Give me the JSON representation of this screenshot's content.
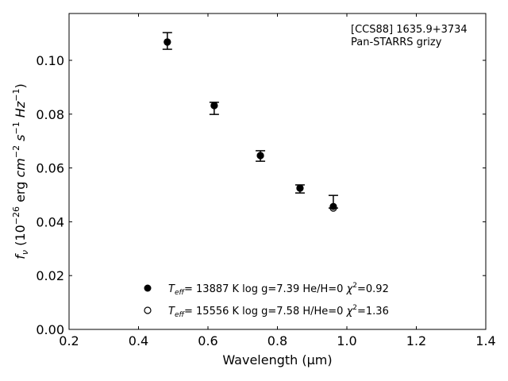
{
  "chart_data": {
    "type": "scatter",
    "title": "",
    "annotation_lines": [
      "[CCS88] 1635.9+3734",
      "Pan-STARRS grizy"
    ],
    "xlabel": "Wavelength (μm)",
    "ylabel": {
      "f": "f",
      "sub": "ν",
      "p1": " (10",
      "e1": "−26",
      "p2": " erg ",
      "cm": "cm",
      "e2": "−2",
      "s": " s",
      "e3": "−1",
      "hz": " Hz",
      "e4": "−1",
      "close": ")"
    },
    "xlim": [
      0.2,
      1.4
    ],
    "ylim": [
      0,
      0.1174
    ],
    "xticks": [
      0.2,
      0.4,
      0.6,
      0.8,
      1.0,
      1.2,
      1.4
    ],
    "xtick_labels": [
      "0.2",
      "0.4",
      "0.6",
      "0.8",
      "1.0",
      "1.2",
      "1.4"
    ],
    "yticks": [
      0,
      0.02,
      0.04,
      0.06,
      0.08,
      0.1
    ],
    "ytick_labels": [
      "0.00",
      "0.02",
      "0.04",
      "0.06",
      "0.08",
      "0.10"
    ],
    "observed": {
      "x": [
        0.483,
        0.618,
        0.751,
        0.865,
        0.961
      ],
      "y": [
        0.1068,
        0.0832,
        0.0646,
        0.0525,
        0.0457
      ],
      "err_low": [
        0.1041,
        0.0799,
        0.0625,
        0.0507,
        0.0451
      ],
      "err_high": [
        0.1103,
        0.0844,
        0.0664,
        0.0537,
        0.0498
      ]
    },
    "series": [
      {
        "name": "model-H",
        "marker": "filled",
        "x": [
          0.483,
          0.618,
          0.751,
          0.865,
          0.961
        ],
        "y": [
          0.1068,
          0.0832,
          0.0646,
          0.0525,
          0.0457
        ],
        "legend": {
          "teff": "T",
          "sub": "eff",
          "rest": "= 13887 K  log g=7.39  He/H=0  ",
          "chi": "χ",
          "sup": "2",
          "val": "=0.92"
        }
      },
      {
        "name": "model-He",
        "marker": "open",
        "x": [
          0.483,
          0.618,
          0.751,
          0.865,
          0.961
        ],
        "y": [
          0.1068,
          0.0832,
          0.0646,
          0.0525,
          0.0451
        ],
        "legend": {
          "teff": "T",
          "sub": "eff",
          "rest": "= 15556 K  log g=7.58  H/He=0  ",
          "chi": "χ",
          "sup": "2",
          "val": "=1.36"
        }
      }
    ],
    "legend_position": "bottom-center",
    "grid": false
  }
}
